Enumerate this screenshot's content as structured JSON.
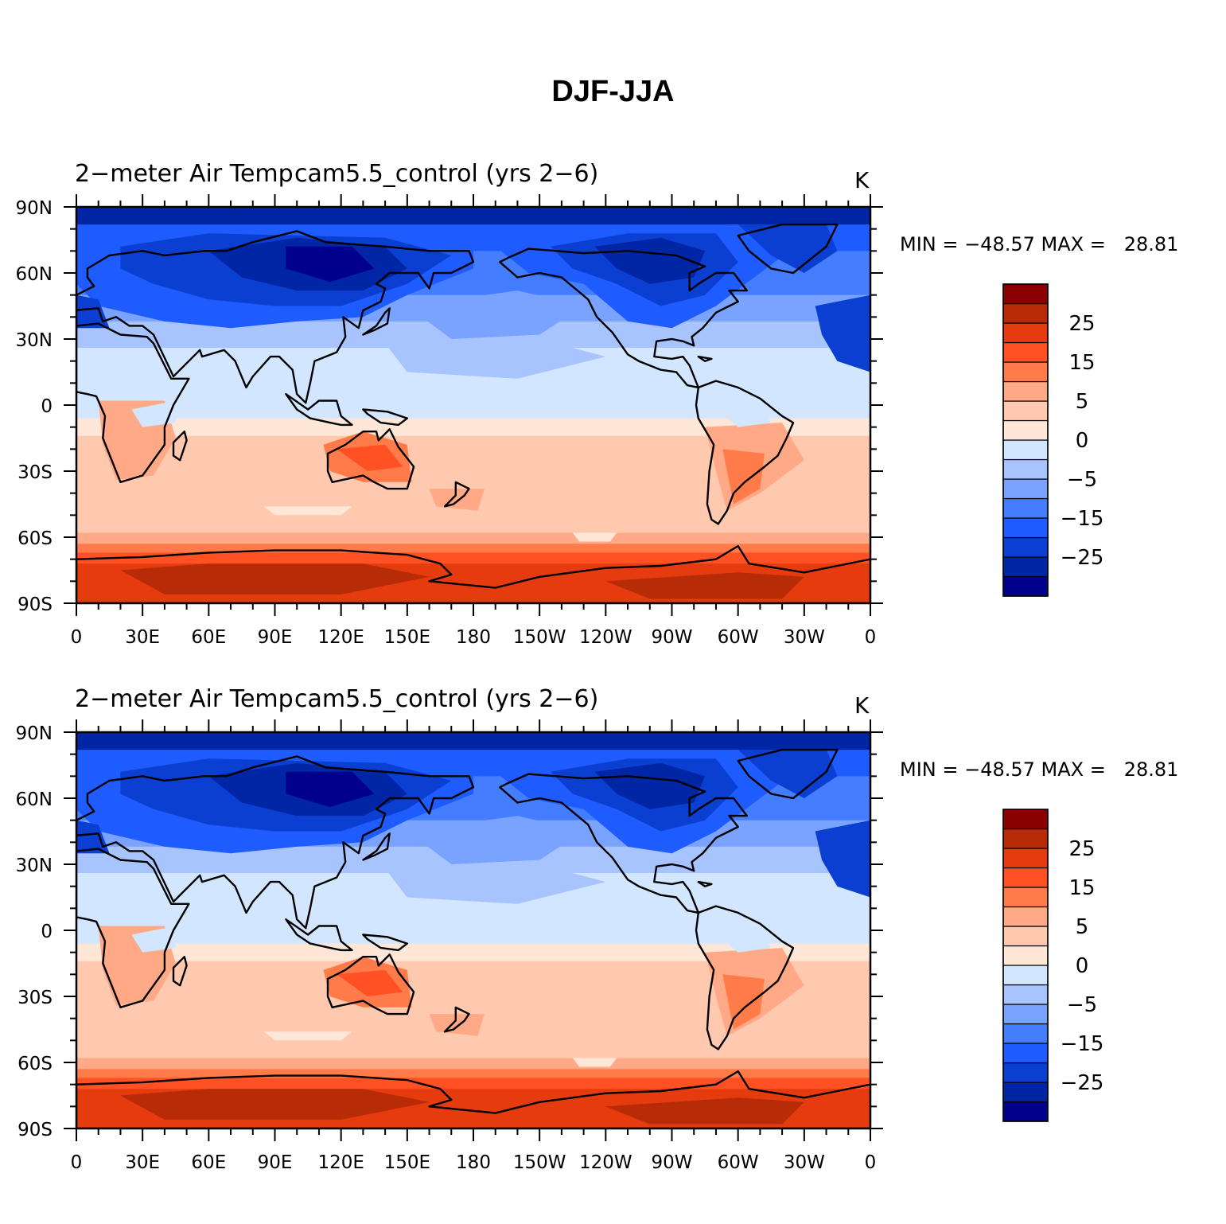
{
  "figure_title": "DJF-JJA",
  "colors": {
    "levels": [
      "#00008c",
      "#0026a6",
      "#0a3fd1",
      "#1e5cff",
      "#447dfd",
      "#7aa2ff",
      "#a8c4ff",
      "#d2e6ff",
      "#ffe7d7",
      "#ffc9b0",
      "#ffa986",
      "#ff7c4a",
      "#ff5123",
      "#e63a0f",
      "#b72b06",
      "#8b0000"
    ],
    "coast": "#000000"
  },
  "colorbar": {
    "labels": [
      "25",
      "15",
      "5",
      "0",
      "−5",
      "−15",
      "−25"
    ]
  },
  "axes": {
    "lat_labels": [
      "90N",
      "60N",
      "30N",
      "0",
      "30S",
      "60S",
      "90S"
    ],
    "lon_labels": [
      "0",
      "30E",
      "60E",
      "90E",
      "120E",
      "150E",
      "180",
      "150W",
      "120W",
      "90W",
      "60W",
      "30W",
      "0"
    ]
  },
  "panels": [
    {
      "left_title": "2−meter Air Temp",
      "center_title": "cam5.5_control (yrs 2−6)",
      "units": "K",
      "stats": "MIN = −48.57 MAX =   28.81"
    },
    {
      "left_title": "2−meter Air Temp",
      "center_title": "cam5.5_control (yrs 2−6)",
      "units": "K",
      "stats": "MIN = −48.57 MAX =   28.81"
    }
  ]
}
